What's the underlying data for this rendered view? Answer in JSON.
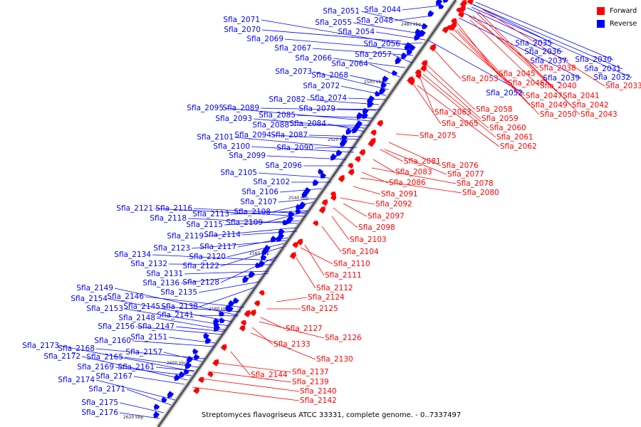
{
  "caption": "Streptomyces flavogriseus ATCC 33331, complete genome. - 0..7337497",
  "legend": [
    {
      "label": "Forward",
      "color": "#ff0000"
    },
    {
      "label": "Reverse",
      "color": "#0000ff"
    }
  ],
  "colors": {
    "forward": "#ff0000",
    "reverse": "#0000ff",
    "backbone": "#555555"
  },
  "ticks": [
    "2480 kbp",
    "2500 kbp",
    "2520 kbp",
    "2540 kbp",
    "2560 kbp",
    "2580 kbp",
    "2600 kbp",
    "2620 kbp"
  ],
  "genes_reverse": [
    "Sfla_2044",
    "Sfla_2051",
    "Sfla_2048",
    "Sfla_2055",
    "Sfla_2054",
    "Sfla_2071",
    "Sfla_2070",
    "Sfla_2056",
    "Sfla_2069",
    "Sfla_2067",
    "Sfla_2057",
    "Sfla_2066",
    "Sfla_2064",
    "Sfla_2073",
    "Sfla_2068",
    "Sfla_2072",
    "Sfla_2074",
    "Sfla_2082",
    "Sfla_2095",
    "Sfla_2089",
    "Sfla_2079",
    "Sfla_2093",
    "Sfla_2085",
    "Sfla_2088",
    "Sfla_2084",
    "Sfla_2101",
    "Sfla_2094",
    "Sfla_2087",
    "Sfla_2100",
    "Sfla_2090",
    "Sfla_2099",
    "Sfla_2096",
    "Sfla_2105",
    "Sfla_2102",
    "Sfla_2106",
    "Sfla_2107",
    "Sfla_2121",
    "Sfla_2116",
    "Sfla_2108",
    "Sfla_2113",
    "Sfla_2118",
    "Sfla_2115",
    "Sfla_2109",
    "Sfla_2119",
    "Sfla_2114",
    "Sfla_2123",
    "Sfla_2117",
    "Sfla_2134",
    "Sfla_2120",
    "Sfla_2132",
    "Sfla_2122",
    "Sfla_2131",
    "Sfla_2136",
    "Sfla_2128",
    "Sfla_2149",
    "Sfla_2135",
    "Sfla_2154",
    "Sfla_2146",
    "Sfla_2145",
    "Sfla_2138",
    "Sfla_2153",
    "Sfla_2141",
    "Sfla_2148",
    "Sfla_2156",
    "Sfla_2147",
    "Sfla_2151",
    "Sfla_2160",
    "Sfla_2173",
    "Sfla_2168",
    "Sfla_2157",
    "Sfla_2172",
    "Sfla_2165",
    "Sfla_2169",
    "Sfla_2161",
    "Sfla_2167",
    "Sfla_2174",
    "Sfla_2171",
    "Sfla_2175",
    "Sfla_2176",
    "Sfla_2035",
    "Sfla_2036",
    "Sfla_2037",
    "Sfla_2030",
    "Sfla_2039",
    "Sfla_2031",
    "Sfla_2032",
    "Sfla_2052"
  ],
  "genes_forward": [
    "Sfla_2038",
    "Sfla_2045",
    "Sfla_2033",
    "Sfla_2053",
    "Sfla_2046",
    "Sfla_2040",
    "Sfla_2047",
    "Sfla_2041",
    "Sfla_2049",
    "Sfla_2042",
    "Sfla_2058",
    "Sfla_2050",
    "Sfla_2043",
    "Sfla_2063",
    "Sfla_2059",
    "Sfla_2065",
    "Sfla_2060",
    "Sfla_2061",
    "Sfla_2075",
    "Sfla_2062",
    "Sfla_2081",
    "Sfla_2076",
    "Sfla_2083",
    "Sfla_2077",
    "Sfla_2086",
    "Sfla_2078",
    "Sfla_2080",
    "Sfla_2091",
    "Sfla_2092",
    "Sfla_2097",
    "Sfla_2098",
    "Sfla_2103",
    "Sfla_2104",
    "Sfla_2110",
    "Sfla_2111",
    "Sfla_2112",
    "Sfla_2124",
    "Sfla_2125",
    "Sfla_2127",
    "Sfla_2126",
    "Sfla_2133",
    "Sfla_2130",
    "Sfla_2144",
    "Sfla_2137",
    "Sfla_2139",
    "Sfla_2140",
    "Sfla_2142"
  ]
}
